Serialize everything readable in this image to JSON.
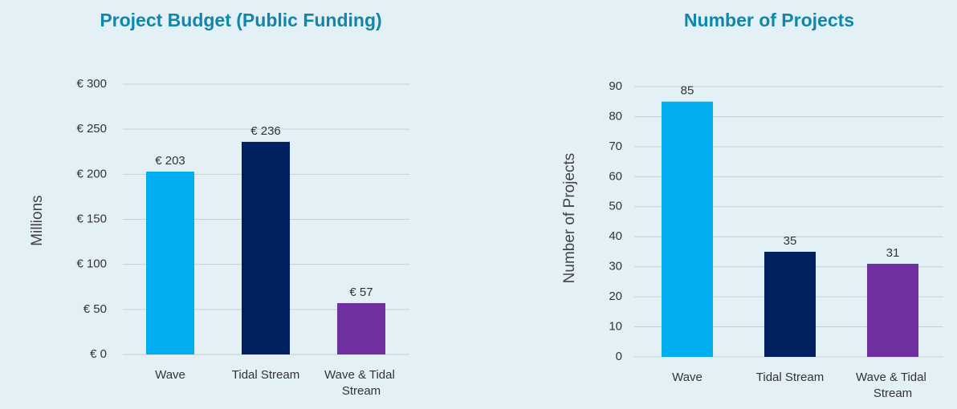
{
  "chart_data": [
    {
      "type": "bar",
      "title": "Project Budget (Public Funding)",
      "y_label": "Millions",
      "categories": [
        "Wave",
        "Tidal Stream",
        "Wave & Tidal Stream"
      ],
      "values": [
        203,
        236,
        57
      ],
      "value_labels": [
        "€ 203",
        "€ 236",
        "€ 57"
      ],
      "colors": [
        "#00aeef",
        "#002060",
        "#7030a0"
      ],
      "ylim": [
        0,
        300
      ],
      "yticks": [
        {
          "value": 0,
          "label": "€ 0"
        },
        {
          "value": 50,
          "label": "€ 50"
        },
        {
          "value": 100,
          "label": "€ 100"
        },
        {
          "value": 150,
          "label": "€ 150"
        },
        {
          "value": 200,
          "label": "€ 200"
        },
        {
          "value": 250,
          "label": "€ 250"
        },
        {
          "value": 300,
          "label": "€ 300"
        }
      ],
      "grid": true
    },
    {
      "type": "bar",
      "title": "Number of Projects",
      "y_label": "Number of Projects",
      "categories": [
        "Wave",
        "Tidal Stream",
        "Wave & Tidal Stream"
      ],
      "values": [
        85,
        35,
        31
      ],
      "colors": [
        "#00aeef",
        "#002060",
        "#7030a0"
      ],
      "ylim": [
        0,
        90
      ],
      "yticks": [
        0,
        10,
        20,
        30,
        40,
        50,
        60,
        70,
        80,
        90
      ],
      "grid": true
    }
  ]
}
